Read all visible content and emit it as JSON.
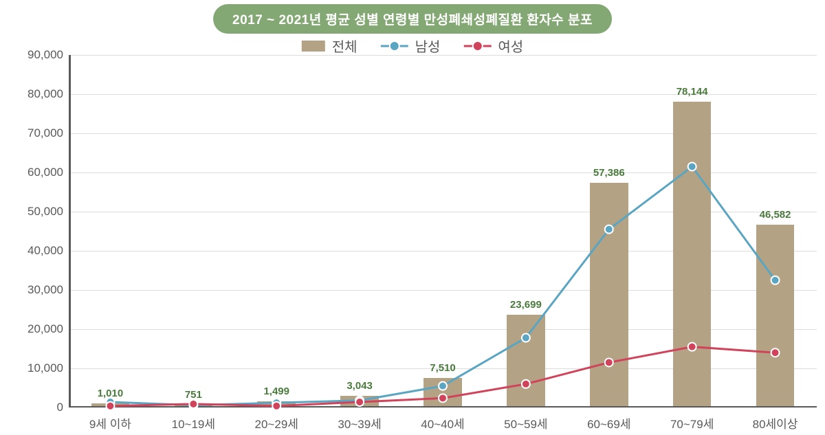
{
  "title": "2017 ~ 2021년 평균 성별 연령별 만성폐쇄성폐질환 환자수 분포",
  "title_style": {
    "bg": "#84a874",
    "color": "#ffffff",
    "fontsize": 19
  },
  "legend": {
    "items": [
      {
        "kind": "bar",
        "label": "전체",
        "color": "#b3a384"
      },
      {
        "kind": "line",
        "label": "남성",
        "line_color": "#5aa5c2",
        "dot_fill": "#5aa5c2"
      },
      {
        "kind": "line",
        "label": "여성",
        "line_color": "#d1435a",
        "dot_fill": "#d1435a"
      }
    ]
  },
  "plot": {
    "background": "#ffffff",
    "axis_color": "#595959",
    "grid_color": "#dcdcdc",
    "tick_label_color": "#595959",
    "bar_label_color": "#4a7a3c",
    "ylim": [
      0,
      90000
    ],
    "ytick_step": 10000,
    "ytick_format": "comma",
    "categories": [
      "9세 이하",
      "10~19세",
      "20~29세",
      "30~39세",
      "40~40세",
      "50~59세",
      "60~69세",
      "70~79세",
      "80세이상"
    ],
    "bars": {
      "color": "#b3a384",
      "width_frac": 0.46,
      "values": [
        1010,
        751,
        1499,
        3043,
        7510,
        23699,
        57386,
        78144,
        46582
      ],
      "value_labels": [
        "1,010",
        "751",
        "1,499",
        "3,043",
        "7,510",
        "23,699",
        "57,386",
        "78,144",
        "46,582"
      ]
    },
    "lines": [
      {
        "name": "male",
        "color": "#5aa5c2",
        "stroke_width": 3,
        "marker_radius": 6,
        "marker_border": "#ffffff",
        "values": [
          1400,
          600,
          1200,
          1800,
          5500,
          17800,
          45500,
          61500,
          32500
        ]
      },
      {
        "name": "female",
        "color": "#d1435a",
        "stroke_width": 3,
        "marker_radius": 6,
        "marker_border": "#ffffff",
        "values": [
          400,
          900,
          400,
          1400,
          2400,
          6000,
          11500,
          15500,
          14000
        ]
      }
    ]
  }
}
